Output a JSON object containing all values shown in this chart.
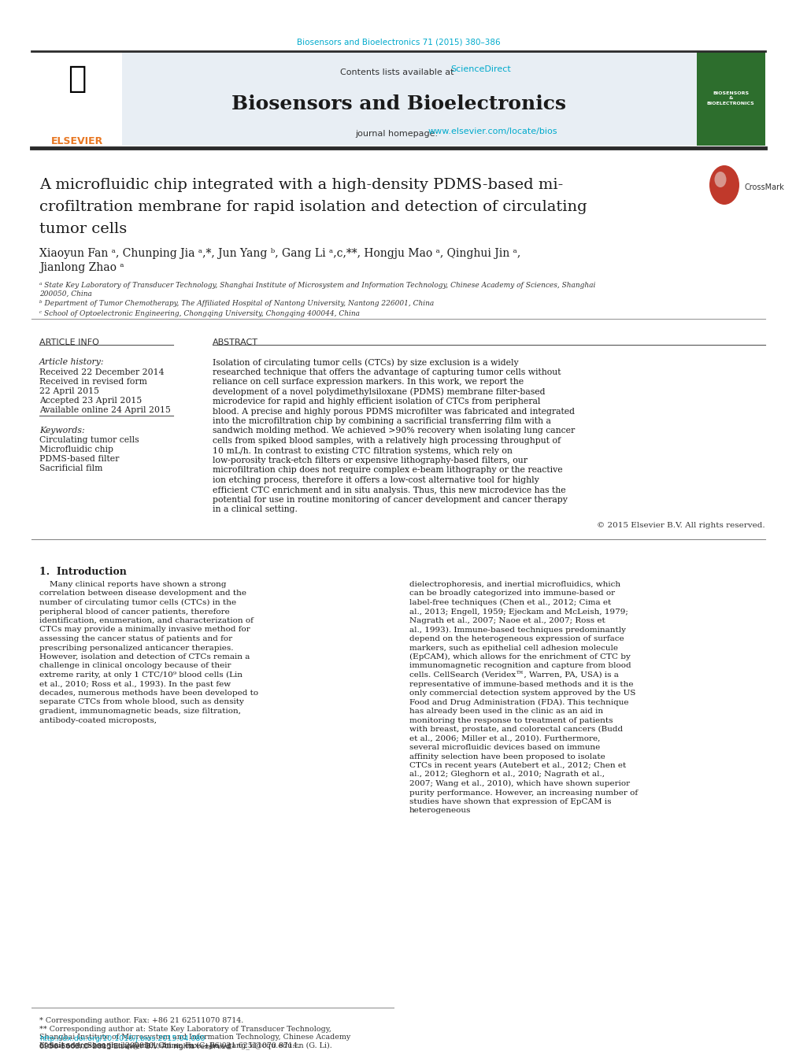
{
  "bg_color": "#ffffff",
  "header_bar_color": "#2b2b2b",
  "journal_header_bg": "#e8eef4",
  "journal_title": "Biosensors and Bioelectronics",
  "journal_ref": "Biosensors and Bioelectronics 71 (2015) 380–386",
  "contents_text": "Contents lists available at ",
  "science_direct": "ScienceDirect",
  "journal_homepage_label": "journal homepage: ",
  "journal_url": "www.elsevier.com/locate/bios",
  "link_color": "#00aacc",
  "paper_title_line1": "A microfluidic chip integrated with a high-density PDMS-based mi-",
  "paper_title_line2": "crofiltration membrane for rapid isolation and detection of circulating",
  "paper_title_line3": "tumor cells",
  "authors": "Xiaoyun Fan á, Chunping Jia á,*, Jun Yang ᵇ, Gang Li á,c,**, Hongju Mao á, Qinghui Jin á,\nJianlong Zhao á",
  "affil_a": "ᵃ State Key Laboratory of Transducer Technology, Shanghai Institute of Microsystem and Information Technology, Chinese Academy of Sciences, Shanghai\n200050, China",
  "affil_b": "ᵇ Department of Tumor Chemotherapy, The Affiliated Hospital of Nantong University, Nantong 226001, China",
  "affil_c": "ᶜ School of Optoelectronic Engineering, Chongqing University, Chongqing 400044, China",
  "article_info_title": "ARTICLE INFO",
  "abstract_title": "ABSTRACT",
  "article_history_label": "Article history:",
  "received_1": "Received 22 December 2014",
  "received_revised": "Received in revised form",
  "revised_date": "22 April 2015",
  "accepted": "Accepted 23 April 2015",
  "available": "Available online 24 April 2015",
  "keywords_label": "Keywords:",
  "kw1": "Circulating tumor cells",
  "kw2": "Microfluidic chip",
  "kw3": "PDMS-based filter",
  "kw4": "Sacrificial film",
  "abstract_text": "Isolation of circulating tumor cells (CTCs) by size exclusion is a widely researched technique that offers the advantage of capturing tumor cells without reliance on cell surface expression markers. In this work, we report the development of a novel polydimethylsiloxane (PDMS) membrane filter-based microdevice for rapid and highly efficient isolation of CTCs from peripheral blood. A precise and highly porous PDMS microfilter was fabricated and integrated into the microfiltration chip by combining a sacrificial transferring film with a sandwich molding method. We achieved >90% recovery when isolating lung cancer cells from spiked blood samples, with a relatively high processing throughput of 10 mL/h. In contrast to existing CTC filtration systems, which rely on low-porosity track-etch filters or expensive lithography-based filters, our microfiltration chip does not require complex e-beam lithography or the reactive ion etching process, therefore it offers a low-cost alternative tool for highly efficient CTC enrichment and in situ analysis. Thus, this new microdevice has the potential for use in routine monitoring of cancer development and cancer therapy in a clinical setting.",
  "copyright": "© 2015 Elsevier B.V. All rights reserved.",
  "intro_title": "1.  Introduction",
  "intro_col1": "Many clinical reports have shown a strong correlation between disease development and the number of circulating tumor cells (CTCs) in the peripheral blood of cancer patients, therefore identification, enumeration, and characterization of CTCs may provide a minimally invasive method for assessing the cancer status of patients and for prescribing personalized anticancer therapies. However, isolation and detection of CTCs remain a challenge in clinical oncology because of their extreme rarity, at only 1 CTC/10⁹ blood cells (Lin et al., 2010; Ross et al., 1993). In the past few decades, numerous methods have been developed to separate CTCs from whole blood, such as density gradient, immunomagnetic beads, size filtration, antibody-coated microposts,",
  "intro_col2": "dielectrophoresis, and inertial microfluidics, which can be broadly categorized into immune-based or label-free techniques (Chen et al., 2012; Cima et al., 2013; Engell, 1959; Ejeckam and McLeish, 1979; Nagrath et al., 2007; Naoe et al., 2007; Ross et al., 1993). Immune-based techniques predominantly depend on the heterogeneous expression of surface markers, such as epithelial cell adhesion molecule (EpCAM), which allows for the enrichment of CTC by immunomagnetic recognition and capture from blood cells. CellSearch (Veridex™, Warren, PA, USA) is a representative of immune-based methods and it is the only commercial detection system approved by the US Food and Drug Administration (FDA). This technique has already been used in the clinic as an aid in monitoring the response to treatment of patients with breast, prostate, and colorectal cancers (Budd et al., 2006; Miller et al., 2010). Furthermore, several microfluidic devices based on immune affinity selection have been proposed to isolate CTCs in recent years (Autebert et al., 2012; Chen et al., 2012; Gleghorn et al., 2010; Nagrath et al., 2007; Wang et al., 2010), which have shown superior purity performance. However, an increasing number of studies have shown that expression of EpCAM is heterogeneous",
  "footnote1": "* Corresponding author. Fax: +86 21 62511070 8714.",
  "footnote2": "** Corresponding author at: State Key Laboratory of Transducer Technology,\nShanghai Institute of Microsystem and Information Technology, Chinese Academy\nof Sciences, Shanghai 200050, China. Fax: +86 021 62511070 8714.",
  "footnote3": "E-mail addresses: jiachp@mail.sim.ac.cn (C. Jia), gang_li@cqu.edu.cn (G. Li).",
  "doi_text": "http://dx.doi.org/10.1016/j.bios.2015.04.080",
  "issn_text": "0956-5663/© 2015 Elsevier B.V. All rights reserved.",
  "text_color": "#000000",
  "italic_color": "#333333",
  "title_fontsize": 14,
  "body_fontsize": 7.5,
  "small_fontsize": 6.5
}
